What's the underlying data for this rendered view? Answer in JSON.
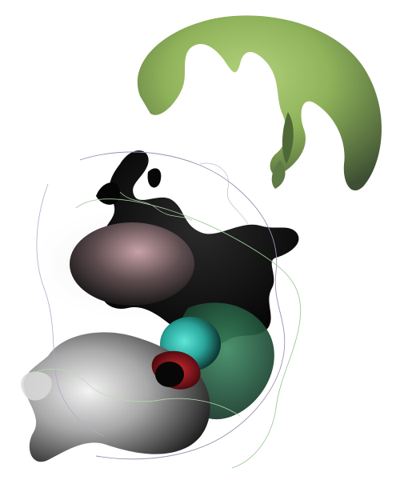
{
  "artwork": {
    "background": "#ffffff",
    "palette": {
      "leaf_green": "#8fb35a",
      "leaf_dark": "#3e4f33",
      "ink_black": "#060606",
      "smoke_pink": "#c8a2a6",
      "smoke_gray": "#8c8c8c",
      "teal_glow": "#3fd1c3",
      "forest_green": "#2f6e4f",
      "crimson": "#a3121c",
      "haze": "#ececec",
      "line_violet": "#9d8fb0",
      "line_green": "#9fc99a"
    }
  }
}
